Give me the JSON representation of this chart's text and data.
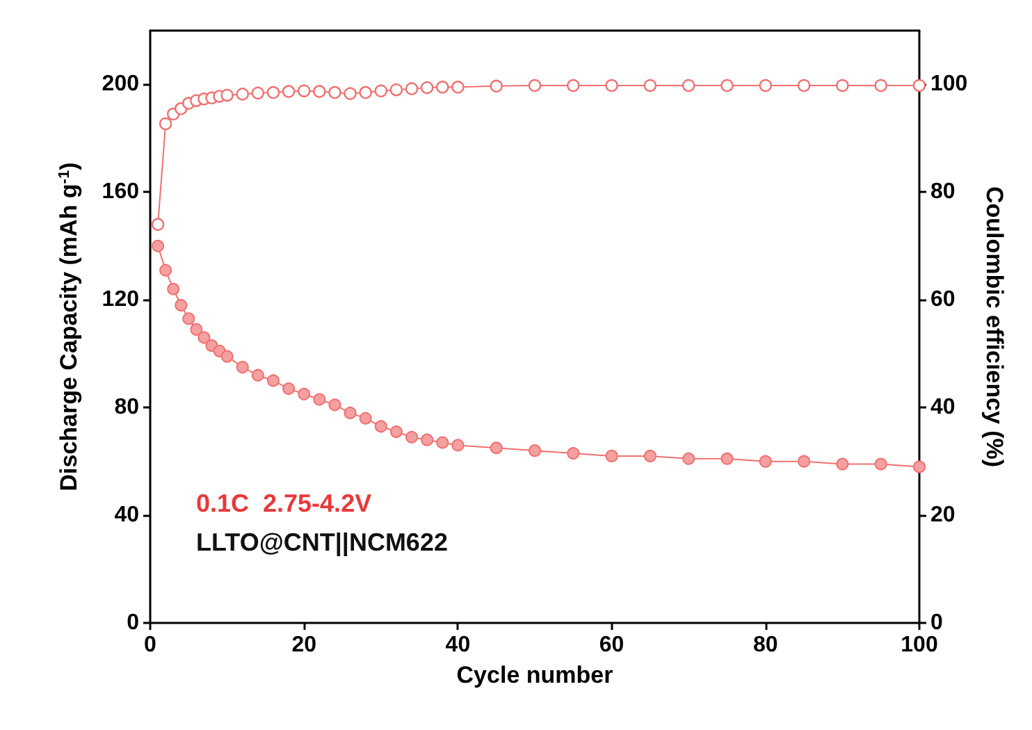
{
  "chart_data": {
    "type": "line",
    "xlabel": "Cycle number",
    "ylabel": "Discharge Capacity (mAh g$^{-1}$)",
    "y2label": "Coulombic efficiency (%)",
    "xlim": [
      0,
      100
    ],
    "xticks": [
      0,
      20,
      40,
      60,
      80,
      100
    ],
    "ylim": [
      0,
      220
    ],
    "yticks": [
      0,
      40,
      80,
      120,
      160,
      200
    ],
    "y2lim": [
      0,
      110
    ],
    "y2ticks": [
      0,
      20,
      40,
      60,
      80,
      100
    ],
    "marker": "circle",
    "grid": false,
    "annotations": [
      "0.1C  2.75-4.2V",
      "LLTO@CNT||NCM622"
    ],
    "series": [
      {
        "color": "#f07070",
        "x": [
          1,
          2,
          3,
          4,
          5,
          6,
          7,
          8,
          9,
          10,
          12,
          14,
          16,
          18,
          20,
          22,
          24,
          26,
          28,
          30,
          32,
          34,
          36,
          38,
          40,
          45,
          50,
          55,
          60,
          65,
          70,
          75,
          80,
          85,
          90,
          95,
          100
        ],
        "values": [
          140,
          131,
          124,
          118,
          113,
          109,
          106,
          103,
          101,
          99,
          95,
          92,
          90,
          87,
          85,
          83,
          81,
          78,
          76,
          73,
          71,
          69,
          68,
          67,
          66,
          65,
          64,
          63,
          62,
          62,
          61,
          61,
          60,
          60,
          59,
          59,
          58
        ]
      },
      {
        "color": "#f07070",
        "axis": "y2",
        "x": [
          1,
          2,
          3,
          4,
          5,
          6,
          7,
          8,
          9,
          10,
          12,
          14,
          16,
          18,
          20,
          22,
          24,
          26,
          28,
          30,
          32,
          34,
          36,
          38,
          40,
          45,
          50,
          55,
          60,
          65,
          70,
          75,
          80,
          85,
          90,
          95,
          100
        ],
        "values": [
          74,
          92.7,
          94.5,
          95.5,
          96.5,
          97,
          97.3,
          97.5,
          97.8,
          98,
          98.2,
          98.4,
          98.5,
          98.7,
          98.8,
          98.7,
          98.5,
          98.3,
          98.5,
          98.8,
          99,
          99.2,
          99.4,
          99.5,
          99.5,
          99.7,
          99.8,
          99.8,
          99.8,
          99.8,
          99.8,
          99.8,
          99.8,
          99.8,
          99.8,
          99.8,
          99.8
        ]
      }
    ]
  }
}
